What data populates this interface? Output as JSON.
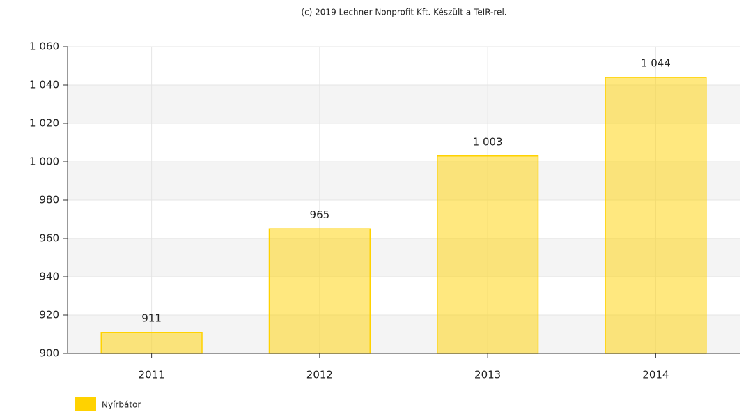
{
  "chart_data": {
    "type": "bar",
    "title": "(c) 2019 Lechner Nonprofit Kft. Készült a TeIR-rel.",
    "categories": [
      "2011",
      "2012",
      "2013",
      "2014"
    ],
    "series": [
      {
        "name": "Nyírbátor",
        "color": "#ffd200",
        "values": [
          911,
          965,
          1003,
          1044
        ],
        "value_labels": [
          "911",
          "965",
          "1 003",
          "1 044"
        ]
      }
    ],
    "ylim": [
      900,
      1060
    ],
    "yticks": [
      900,
      920,
      940,
      960,
      980,
      {
        "value": 1000,
        "label": "1 000"
      },
      {
        "value": 1020,
        "label": "1 020"
      },
      {
        "value": 1040,
        "label": "1 040"
      },
      {
        "value": 1060,
        "label": "1 060"
      }
    ],
    "grid": true,
    "legend": "bottom-left"
  }
}
